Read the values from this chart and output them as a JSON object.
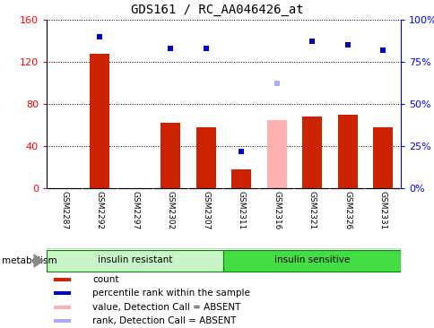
{
  "title": "GDS161 / RC_AA046426_at",
  "samples": [
    "GSM2287",
    "GSM2292",
    "GSM2297",
    "GSM2302",
    "GSM2307",
    "GSM2311",
    "GSM2316",
    "GSM2321",
    "GSM2326",
    "GSM2331"
  ],
  "bar_values": [
    0,
    128,
    0,
    62,
    58,
    18,
    0,
    68,
    70,
    58
  ],
  "bar_color": "#cc2200",
  "absent_bar_values": [
    0,
    0,
    0,
    0,
    0,
    0,
    65,
    0,
    0,
    0
  ],
  "absent_bar_color": "#ffb0b0",
  "rank_values": [
    null,
    90,
    null,
    83,
    83,
    22,
    null,
    87,
    85,
    82
  ],
  "rank_color": "#0000cc",
  "absent_rank_values": [
    null,
    null,
    null,
    null,
    null,
    null,
    62,
    null,
    null,
    null
  ],
  "absent_rank_color": "#aaaaff",
  "ylim_left": [
    0,
    160
  ],
  "ylim_right": [
    0,
    100
  ],
  "yticks_left": [
    0,
    40,
    80,
    120,
    160
  ],
  "ytick_labels_left": [
    "0",
    "40",
    "80",
    "120",
    "160"
  ],
  "yticks_right": [
    0,
    25,
    50,
    75,
    100
  ],
  "ytick_labels_right": [
    "0%",
    "25%",
    "50%",
    "75%",
    "100%"
  ],
  "group1_label": "insulin resistant",
  "group2_label": "insulin sensitive",
  "group1_indices": [
    0,
    1,
    2,
    3,
    4
  ],
  "group2_indices": [
    5,
    6,
    7,
    8,
    9
  ],
  "group1_color": "#c8f5c8",
  "group2_color": "#44dd44",
  "metabolism_label": "metabolism",
  "legend_items": [
    {
      "label": "count",
      "color": "#cc2200"
    },
    {
      "label": "percentile rank within the sample",
      "color": "#0000cc"
    },
    {
      "label": "value, Detection Call = ABSENT",
      "color": "#ffb0b0"
    },
    {
      "label": "rank, Detection Call = ABSENT",
      "color": "#aaaaff"
    }
  ],
  "bar_width": 0.55,
  "rank_marker_size": 5,
  "tick_area_color": "#d8d8d8",
  "cell_border_color": "#ffffff",
  "figsize": [
    4.85,
    3.66
  ],
  "dpi": 100
}
